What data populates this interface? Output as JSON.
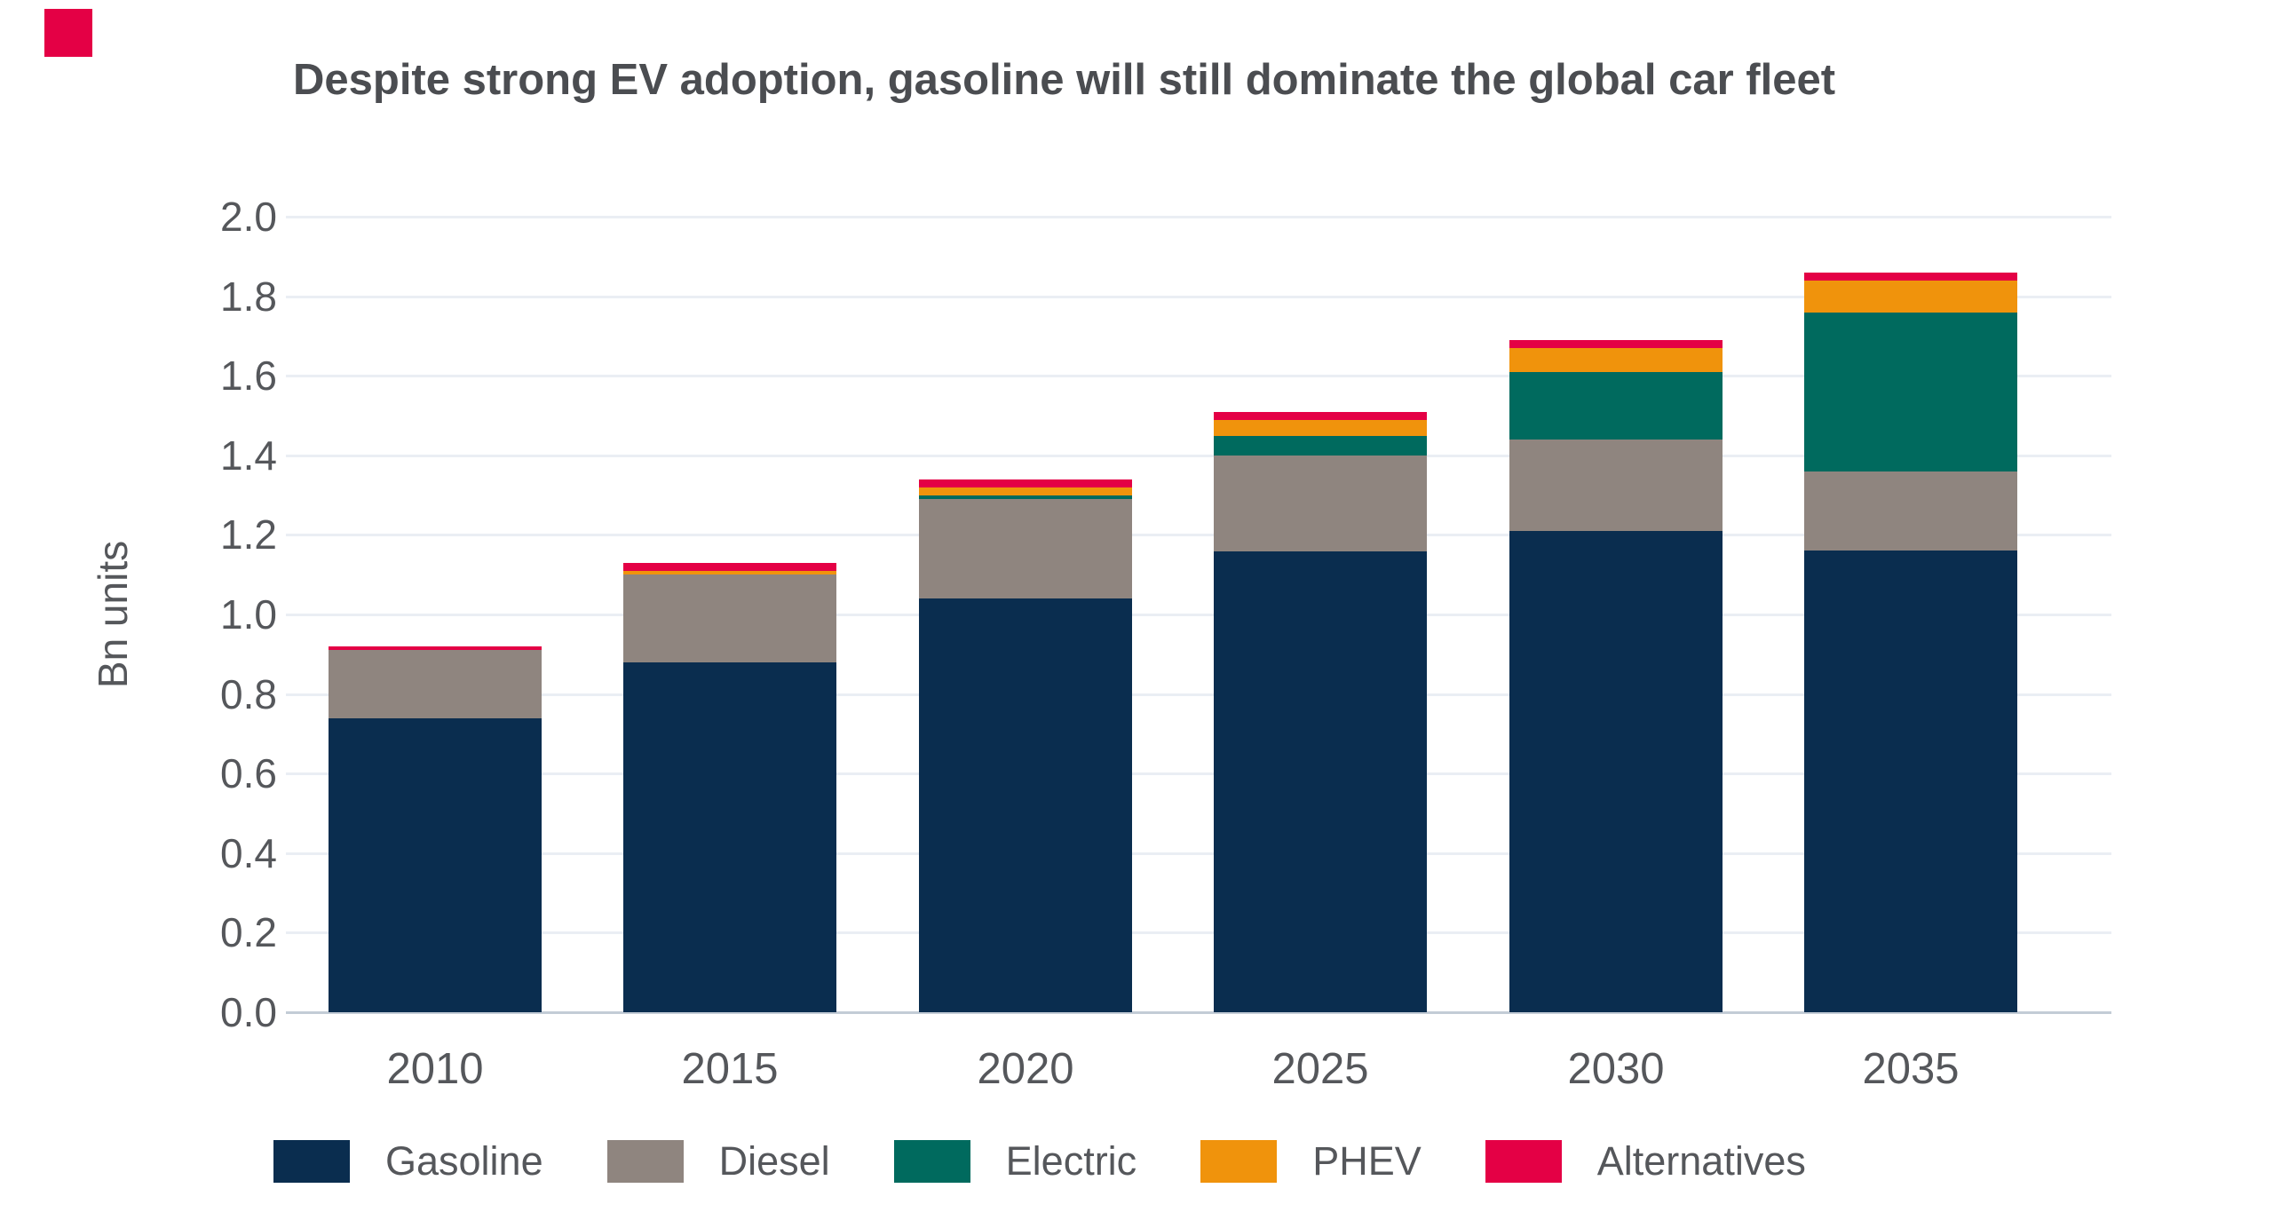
{
  "brand": {
    "mark": "red-square-logo",
    "mark_color": "#e40045"
  },
  "colors": {
    "background": "#ffffff",
    "title_text": "#4b4d51",
    "axis_text": "#55575b",
    "gridline": "#eaeef4",
    "baseline": "#c3ccd6"
  },
  "chart_data": {
    "type": "bar",
    "stacked": true,
    "title": "Despite strong EV adoption, gasoline will still dominate the global car fleet",
    "subtitle": "",
    "xlabel": "",
    "ylabel": "Bn units",
    "categories": [
      "2010",
      "2015",
      "2020",
      "2025",
      "2030",
      "2035"
    ],
    "series": [
      {
        "name": "Gasoline",
        "color": "#0a2d4f",
        "values": [
          0.74,
          0.88,
          1.04,
          1.16,
          1.21,
          1.16
        ]
      },
      {
        "name": "Diesel",
        "color": "#8f857f",
        "values": [
          0.17,
          0.22,
          0.25,
          0.24,
          0.23,
          0.2
        ]
      },
      {
        "name": "Electric",
        "color": "#006a5e",
        "values": [
          0.0,
          0.0,
          0.01,
          0.05,
          0.17,
          0.4
        ]
      },
      {
        "name": "PHEV",
        "color": "#f0930c",
        "values": [
          0.0,
          0.01,
          0.02,
          0.04,
          0.06,
          0.08
        ]
      },
      {
        "name": "Alternatives",
        "color": "#e40045",
        "values": [
          0.01,
          0.02,
          0.02,
          0.02,
          0.02,
          0.02
        ]
      }
    ],
    "totals": [
      0.92,
      1.13,
      1.34,
      1.51,
      1.69,
      1.86
    ],
    "ylim": [
      0.0,
      2.0
    ],
    "ytick_step": 0.2,
    "yticks": [
      "0.0",
      "0.2",
      "0.4",
      "0.6",
      "0.8",
      "1.0",
      "1.2",
      "1.4",
      "1.6",
      "1.8",
      "2.0"
    ],
    "grid": true,
    "legend_position": "bottom"
  }
}
